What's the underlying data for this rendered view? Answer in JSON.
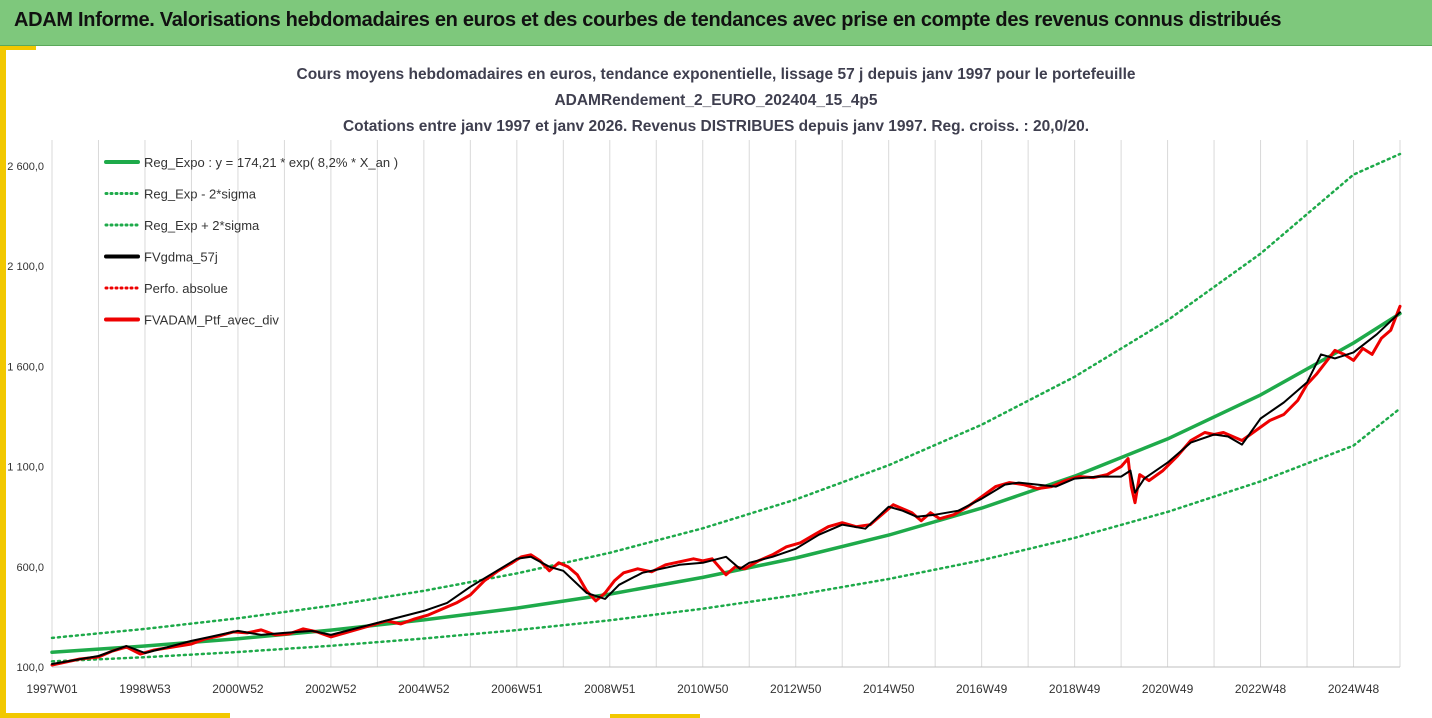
{
  "header": {
    "title": "ADAM Informe. Valorisations hebdomadaires en euros et des courbes de tendances avec prise en compte des revenus connus distribués"
  },
  "colors": {
    "header_bg": "#7ec87c",
    "accent": "#f2c800",
    "green": "#1eaa4a",
    "black": "#000000",
    "red": "#ee0000"
  },
  "chart_data": {
    "type": "line",
    "title_lines": [
      "Cours moyens hebdomadaires  en euros, tendance exponentielle, lissage 57 j depuis janv 1997 pour le portefeuille",
      "ADAMRendement_2_EURO_202404_15_4p5",
      "Cotations entre janv 1997 et janv 2026. Revenus DISTRIBUES depuis janv 1997. Reg. croiss. : 20,0/20."
    ],
    "xlabel": "",
    "ylabel": "",
    "ylim": [
      100,
      2600
    ],
    "yticks": [
      100,
      600,
      1100,
      1600,
      2100,
      2600
    ],
    "ytick_labels": [
      "100,0",
      "600,0",
      "1 100,0",
      "1 600,0",
      "2 100,0",
      "2 600,0"
    ],
    "xlim": [
      1997.0,
      2026.0
    ],
    "xtick_positions": [
      1997.0,
      1999.0,
      2001.0,
      2003.0,
      2005.0,
      2007.0,
      2009.0,
      2011.0,
      2013.0,
      2015.0,
      2017.0,
      2019.0,
      2021.0,
      2023.0,
      2025.0
    ],
    "xtick_labels": [
      "1997W01",
      "1998W53",
      "2000W52",
      "2002W52",
      "2004W52",
      "2006W51",
      "2008W51",
      "2010W50",
      "2012W50",
      "2014W50",
      "2016W49",
      "2018W49",
      "2020W49",
      "2022W48",
      "2024W48"
    ],
    "grid": {
      "vertical": true,
      "horizontal": false
    },
    "legend_position": "top-left",
    "legend": [
      {
        "label": "Reg_Expo : y = 174,21 * exp( 8,2% *  X_an )",
        "color": "#1eaa4a",
        "style": "solid"
      },
      {
        "label": "Reg_Exp - 2*sigma",
        "color": "#1eaa4a",
        "style": "dotted"
      },
      {
        "label": "Reg_Exp + 2*sigma",
        "color": "#1eaa4a",
        "style": "dotted"
      },
      {
        "label": "FVgdma_57j",
        "color": "#000000",
        "style": "solid"
      },
      {
        "label": "Perfo. absolue",
        "color": "#ee0000",
        "style": "dotted"
      },
      {
        "label": "FVADAM_Ptf_avec_div",
        "color": "#ee0000",
        "style": "solid"
      }
    ],
    "series": [
      {
        "name": "Reg_Expo : y = 174,21 * exp( 8,2% *  X_an )",
        "color": "#1eaa4a",
        "x": [
          1997.0,
          1999.0,
          2001.0,
          2003.0,
          2005.0,
          2007.0,
          2009.0,
          2011.0,
          2013.0,
          2015.0,
          2017.0,
          2019.0,
          2021.0,
          2023.0,
          2025.0,
          2026.0
        ],
        "values": [
          174,
          205,
          241,
          284,
          335,
          394,
          464,
          547,
          644,
          758,
          893,
          1052,
          1238,
          1458,
          1717,
          1864
        ]
      },
      {
        "name": "Reg_Exp - 2*sigma",
        "color": "#1eaa4a",
        "x": [
          1997.0,
          1999.0,
          2001.0,
          2003.0,
          2005.0,
          2007.0,
          2009.0,
          2011.0,
          2013.0,
          2015.0,
          2017.0,
          2019.0,
          2021.0,
          2023.0,
          2025.0,
          2026.0
        ],
        "values": [
          128,
          149,
          175,
          206,
          242,
          284,
          333,
          391,
          459,
          539,
          633,
          744,
          874,
          1026,
          1205,
          1390
        ]
      },
      {
        "name": "Reg_Exp + 2*sigma",
        "color": "#1eaa4a",
        "x": [
          1997.0,
          1999.0,
          2001.0,
          2003.0,
          2005.0,
          2007.0,
          2009.0,
          2011.0,
          2013.0,
          2015.0,
          2017.0,
          2019.0,
          2021.0,
          2023.0,
          2025.0,
          2026.0
        ],
        "values": [
          245,
          290,
          343,
          406,
          480,
          567,
          670,
          792,
          936,
          1107,
          1309,
          1548,
          1830,
          2163,
          2557,
          2660
        ]
      },
      {
        "name": "FVgdma_57j",
        "color": "#000000",
        "x": [
          1997.0,
          1997.5,
          1998.0,
          1998.6,
          1999.0,
          1999.5,
          2000.0,
          2000.6,
          2001.0,
          2001.5,
          2002.0,
          2002.6,
          2003.0,
          2003.5,
          2004.0,
          2004.5,
          2005.0,
          2005.5,
          2006.0,
          2006.5,
          2007.0,
          2007.3,
          2007.7,
          2008.0,
          2008.5,
          2008.9,
          2009.2,
          2009.7,
          2010.0,
          2010.5,
          2011.0,
          2011.5,
          2011.8,
          2012.0,
          2012.5,
          2013.0,
          2013.5,
          2014.0,
          2014.5,
          2015.0,
          2015.3,
          2015.6,
          2016.0,
          2016.5,
          2017.0,
          2017.5,
          2017.8,
          2018.2,
          2018.6,
          2019.0,
          2019.5,
          2020.0,
          2020.2,
          2020.3,
          2020.5,
          2021.0,
          2021.5,
          2022.0,
          2022.3,
          2022.6,
          2023.0,
          2023.5,
          2024.0,
          2024.3,
          2024.6,
          2025.0,
          2025.5,
          2026.0
        ],
        "values": [
          115,
          135,
          155,
          205,
          170,
          200,
          230,
          260,
          280,
          260,
          270,
          280,
          260,
          290,
          320,
          350,
          380,
          420,
          500,
          570,
          640,
          650,
          600,
          580,
          470,
          440,
          510,
          570,
          585,
          610,
          620,
          650,
          590,
          620,
          650,
          690,
          760,
          810,
          790,
          900,
          880,
          850,
          860,
          880,
          940,
          1010,
          1020,
          1010,
          1000,
          1040,
          1050,
          1050,
          1080,
          970,
          1040,
          1120,
          1220,
          1260,
          1250,
          1210,
          1340,
          1420,
          1520,
          1660,
          1640,
          1670,
          1760,
          1870
        ]
      },
      {
        "name": "FVADAM_Ptf_avec_div",
        "color": "#ee0000",
        "x": [
          1997.0,
          1997.3,
          1997.6,
          1998.0,
          1998.3,
          1998.6,
          1998.9,
          1999.2,
          1999.6,
          2000.0,
          2000.3,
          2000.6,
          2000.9,
          2001.2,
          2001.5,
          2001.8,
          2002.1,
          2002.4,
          2002.7,
          2003.0,
          2003.3,
          2003.6,
          2003.9,
          2004.2,
          2004.5,
          2004.8,
          2005.1,
          2005.4,
          2005.7,
          2006.0,
          2006.3,
          2006.6,
          2006.9,
          2007.1,
          2007.3,
          2007.5,
          2007.7,
          2007.9,
          2008.1,
          2008.3,
          2008.5,
          2008.7,
          2008.9,
          2009.1,
          2009.3,
          2009.6,
          2009.9,
          2010.2,
          2010.5,
          2010.8,
          2011.0,
          2011.2,
          2011.5,
          2011.7,
          2011.9,
          2012.2,
          2012.5,
          2012.8,
          2013.1,
          2013.4,
          2013.7,
          2014.0,
          2014.3,
          2014.6,
          2014.9,
          2015.1,
          2015.3,
          2015.5,
          2015.7,
          2015.9,
          2016.1,
          2016.4,
          2016.7,
          2017.0,
          2017.3,
          2017.6,
          2017.9,
          2018.2,
          2018.5,
          2018.8,
          2019.1,
          2019.4,
          2019.7,
          2020.0,
          2020.15,
          2020.22,
          2020.3,
          2020.4,
          2020.6,
          2020.9,
          2021.2,
          2021.5,
          2021.8,
          2022.0,
          2022.2,
          2022.4,
          2022.6,
          2022.9,
          2023.2,
          2023.5,
          2023.8,
          2024.0,
          2024.2,
          2024.4,
          2024.6,
          2024.8,
          2025.0,
          2025.2,
          2025.4,
          2025.6,
          2025.8,
          2026.0
        ],
        "values": [
          110,
          125,
          140,
          150,
          180,
          200,
          165,
          185,
          200,
          215,
          240,
          255,
          275,
          270,
          285,
          260,
          265,
          290,
          275,
          250,
          270,
          290,
          310,
          330,
          315,
          340,
          360,
          390,
          420,
          460,
          530,
          580,
          620,
          650,
          660,
          630,
          580,
          620,
          600,
          560,
          480,
          430,
          470,
          530,
          570,
          590,
          575,
          610,
          625,
          640,
          630,
          640,
          560,
          600,
          590,
          630,
          660,
          700,
          720,
          760,
          800,
          820,
          800,
          810,
          870,
          910,
          890,
          870,
          830,
          870,
          840,
          860,
          900,
          950,
          1000,
          1020,
          1010,
          990,
          1000,
          1030,
          1050,
          1045,
          1060,
          1100,
          1140,
          1000,
          920,
          1060,
          1030,
          1080,
          1150,
          1230,
          1270,
          1260,
          1270,
          1250,
          1230,
          1280,
          1330,
          1360,
          1430,
          1510,
          1560,
          1620,
          1680,
          1660,
          1630,
          1690,
          1660,
          1740,
          1780,
          1900
        ]
      }
    ]
  }
}
